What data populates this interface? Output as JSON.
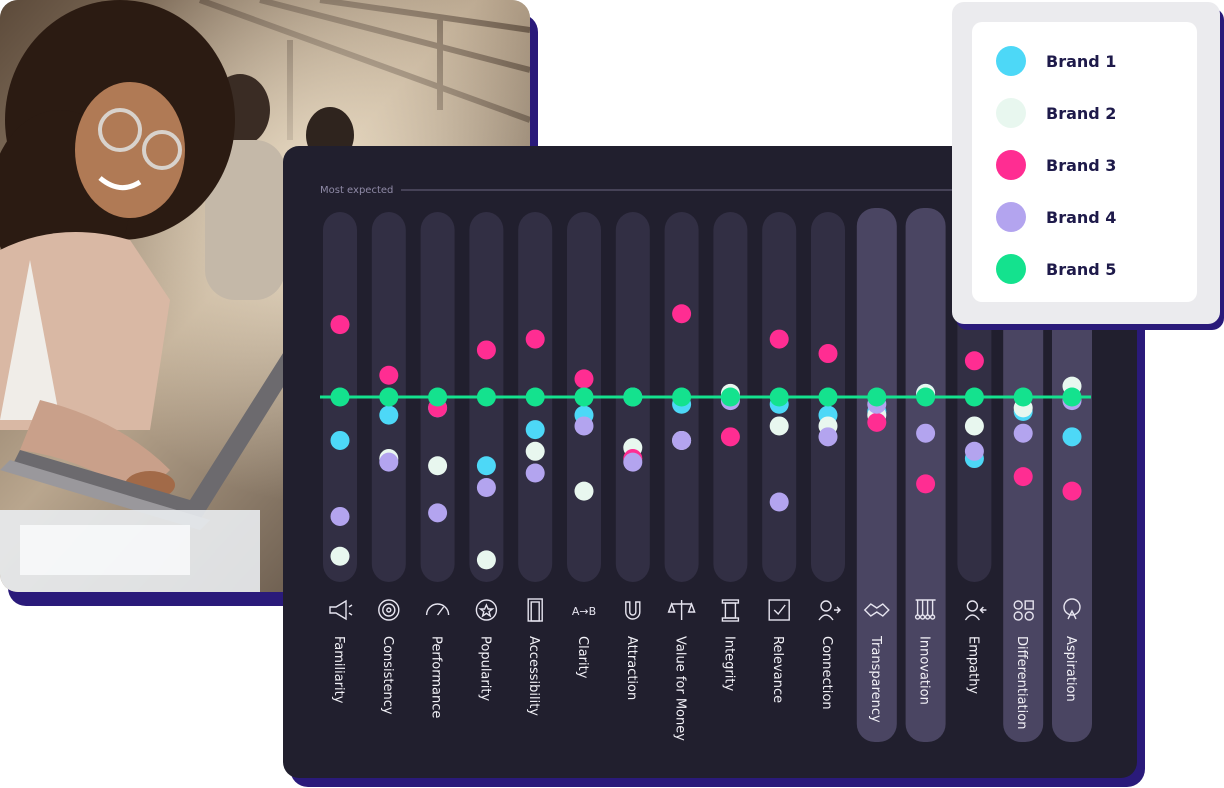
{
  "colors": {
    "brand1": "#4dd8f7",
    "brand2": "#e8f7ef",
    "brand3": "#ff2d92",
    "brand4": "#b3a4ef",
    "brand5": "#14e28e",
    "panel_bg": "#211f2e",
    "column_bg": "#322f44",
    "column_highlight": "#4a4562",
    "accent_border": "#2a1a7a"
  },
  "chart_data": {
    "type": "scatter",
    "title": "",
    "top_label": "Most expected",
    "categories": [
      "Familiarity",
      "Consistency",
      "Performance",
      "Popularity",
      "Accessibility",
      "Clarity",
      "Attraction",
      "Value for Money",
      "Integrity",
      "Relevance",
      "Connection",
      "Transparency",
      "Innovation",
      "Empathy",
      "Differentiation",
      "Aspiration"
    ],
    "icons": [
      "megaphone-icon",
      "target-icon",
      "gauge-icon",
      "star-badge-icon",
      "door-icon",
      "a-to-b-icon",
      "magnet-icon",
      "scales-icon",
      "pillar-icon",
      "checkbox-icon",
      "person-arrow-icon",
      "handshake-icon",
      "cradle-icon",
      "person-heart-icon",
      "shapes-icon",
      "person-rocket-icon"
    ],
    "highlighted": [
      "Transparency",
      "Innovation",
      "Differentiation",
      "Aspiration"
    ],
    "ylim": [
      0,
      100
    ],
    "grid": false,
    "legend_position": "top-right",
    "series": [
      {
        "name": "Brand 1",
        "color": "#4dd8f7",
        "values": [
          38,
          45,
          47,
          31,
          41,
          45,
          50,
          48,
          50,
          48,
          45,
          46,
          51,
          33,
          46,
          39
        ]
      },
      {
        "name": "Brand 2",
        "color": "#e8f7ef",
        "values": [
          6,
          33,
          31,
          5,
          35,
          24,
          36,
          38,
          51,
          42,
          42,
          45,
          51,
          42,
          47,
          53
        ]
      },
      {
        "name": "Brand 3",
        "color": "#ff2d92",
        "values": [
          70,
          56,
          47,
          63,
          66,
          55,
          33,
          73,
          39,
          66,
          62,
          43,
          26,
          60,
          28,
          24
        ]
      },
      {
        "name": "Brand 4",
        "color": "#b3a4ef",
        "values": [
          17,
          32,
          18,
          25,
          29,
          42,
          32,
          38,
          49,
          21,
          39,
          48,
          40,
          35,
          40,
          49
        ]
      },
      {
        "name": "Brand 5",
        "color": "#14e28e",
        "values": [
          50,
          50,
          50,
          50,
          50,
          50,
          50,
          50,
          50,
          50,
          50,
          50,
          50,
          50,
          50,
          50
        ]
      }
    ]
  },
  "legend": {
    "items": [
      {
        "label": "Brand 1",
        "color": "#4dd8f7"
      },
      {
        "label": "Brand 2",
        "color": "#e8f7ef"
      },
      {
        "label": "Brand 3",
        "color": "#ff2d92"
      },
      {
        "label": "Brand 4",
        "color": "#b3a4ef"
      },
      {
        "label": "Brand 5",
        "color": "#14e28e"
      }
    ]
  },
  "photo": {
    "subject": "woman-laptop-photo"
  }
}
